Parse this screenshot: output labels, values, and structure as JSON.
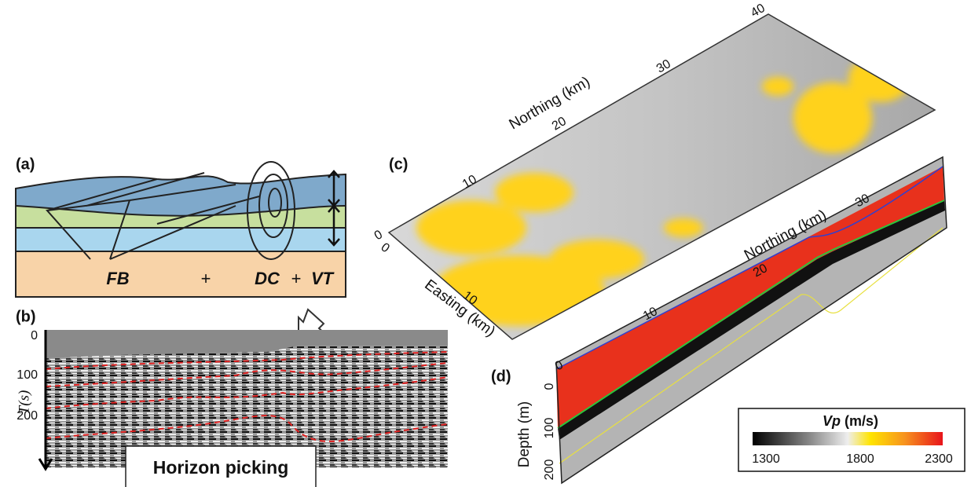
{
  "panel_a": {
    "label": "(a)",
    "fb": "FB",
    "plus1": "+",
    "dc": "DC",
    "plus2": "+",
    "vt": "VT"
  },
  "panel_b": {
    "label": "(b)",
    "axis_label": "T(s)",
    "ticks": [
      0,
      100,
      200
    ],
    "callout": "Horizon picking"
  },
  "panel_c": {
    "label": "(c)",
    "northing_label": "Northing (km)",
    "northing_ticks": [
      0,
      10,
      20,
      30,
      40
    ],
    "easting_label": "Easting (km)",
    "easting_ticks": [
      0,
      10
    ]
  },
  "panel_d": {
    "label": "(d)",
    "northing_label": "Northing (km)",
    "northing_ticks": [
      0,
      10,
      20,
      30
    ],
    "depth_label": "Depth (m)",
    "depth_ticks": [
      0,
      100,
      200
    ]
  },
  "colorbar": {
    "symbol": "Vp",
    "unit": "(m/s)",
    "ticks": [
      1300,
      1800,
      2300
    ]
  }
}
